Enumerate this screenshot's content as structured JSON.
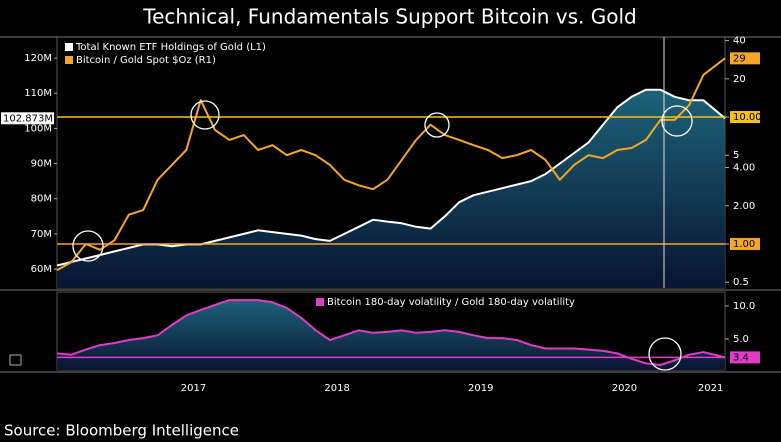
{
  "title": "Technical, Fundamentals Support Bitcoin vs. Gold",
  "source": "Source: Bloomberg Intelligence",
  "chart_data": [
    {
      "type": "line",
      "legend": "upper left",
      "x": [
        2016.55,
        2016.65,
        2016.75,
        2016.85,
        2016.95,
        2017.05,
        2017.15,
        2017.25,
        2017.35,
        2017.45,
        2017.55,
        2017.65,
        2017.75,
        2017.85,
        2017.95,
        2018.05,
        2018.15,
        2018.25,
        2018.35,
        2018.45,
        2018.55,
        2018.65,
        2018.75,
        2018.85,
        2018.95,
        2019.05,
        2019.15,
        2019.25,
        2019.35,
        2019.45,
        2019.55,
        2019.65,
        2019.75,
        2019.85,
        2019.95,
        2020.05,
        2020.15,
        2020.25,
        2020.35,
        2020.45,
        2020.55,
        2020.65,
        2020.75,
        2020.85,
        2020.95,
        2021.05,
        2021.2
      ],
      "xlim": [
        2016.55,
        2021.2
      ],
      "ylim": [
        54600000,
        126000000
      ],
      "yticks": [
        {
          "value": 60000000,
          "label": "60M"
        },
        {
          "value": 70000000,
          "label": "70M"
        },
        {
          "value": 80000000,
          "label": "80M"
        },
        {
          "value": 90000000,
          "label": "90M"
        },
        {
          "value": 100000000,
          "label": "100M"
        },
        {
          "value": 110000000,
          "label": "110M"
        },
        {
          "value": 120000000,
          "label": "120M"
        }
      ],
      "y2lim": [
        0.45,
        42.7
      ],
      "y2scale": "log",
      "y2ticks": [
        40,
        20,
        {
          "value": 10,
          "label": "10.00"
        },
        5,
        {
          "value": 4,
          "label": "4.00"
        },
        {
          "value": 2,
          "label": "2.00"
        },
        {
          "value": 1,
          "label": "1.00"
        },
        0.5
      ],
      "reference_lines": [
        {
          "value": 10,
          "axis": "y2",
          "color": "#f2c21b"
        },
        {
          "value": 1,
          "axis": "y2",
          "color": "#f5a623"
        }
      ],
      "series": [
        {
          "name": "Total Known ETF Holdings of Gold  (L1)",
          "color": "#ffffff",
          "area": true,
          "axis": "y",
          "values": [
            61000000,
            62000000,
            63000000,
            64000000,
            65000000,
            66000000,
            67000000,
            67000000,
            66500000,
            67000000,
            67000000,
            68000000,
            69000000,
            70000000,
            71000000,
            70500000,
            70000000,
            69500000,
            68500000,
            68000000,
            70000000,
            72000000,
            74000000,
            73500000,
            73000000,
            72000000,
            71500000,
            75000000,
            79000000,
            81000000,
            82000000,
            83000000,
            84000000,
            85000000,
            87000000,
            90000000,
            93000000,
            96000000,
            101000000,
            106000000,
            109000000,
            111000000,
            111000000,
            109000000,
            108000000,
            108000000,
            102873000
          ],
          "value_labels": [
            null,
            null,
            null,
            null,
            null,
            null,
            null,
            null,
            null,
            null,
            null,
            null,
            null,
            null,
            null,
            null,
            null,
            null,
            null,
            null,
            null,
            null,
            null,
            null,
            null,
            null,
            null,
            null,
            null,
            null,
            null,
            null,
            null,
            null,
            null,
            null,
            null,
            null,
            null,
            null,
            null,
            null,
            null,
            null,
            null,
            null,
            "102.873M"
          ]
        },
        {
          "name": "Bitcoin / Gold Spot $Oz (R1)",
          "color": "#f5a623",
          "axis": "y2",
          "values": [
            0.62,
            0.72,
            1.0,
            0.9,
            1.07,
            1.7,
            1.85,
            3.2,
            4.2,
            5.5,
            13.6,
            7.9,
            6.6,
            7.2,
            5.5,
            6.0,
            5.0,
            5.5,
            5.0,
            4.2,
            3.2,
            2.9,
            2.7,
            3.2,
            4.6,
            6.6,
            8.7,
            7.2,
            6.6,
            6.0,
            5.5,
            4.75,
            5.0,
            5.5,
            4.6,
            3.2,
            4.2,
            5.0,
            4.75,
            5.5,
            5.7,
            6.6,
            9.5,
            9.5,
            12.4,
            21.5,
            29
          ]
        }
      ]
    },
    {
      "type": "line",
      "legend": "upper center",
      "x": [
        2016.55,
        2016.65,
        2016.75,
        2016.85,
        2016.95,
        2017.05,
        2017.15,
        2017.25,
        2017.35,
        2017.45,
        2017.55,
        2017.65,
        2017.75,
        2017.85,
        2017.95,
        2018.05,
        2018.15,
        2018.25,
        2018.35,
        2018.45,
        2018.55,
        2018.65,
        2018.75,
        2018.85,
        2018.95,
        2019.05,
        2019.15,
        2019.25,
        2019.35,
        2019.45,
        2019.55,
        2019.65,
        2019.75,
        2019.85,
        2019.95,
        2020.05,
        2020.15,
        2020.25,
        2020.35,
        2020.45,
        2020.55,
        2020.65,
        2020.75,
        2020.85,
        2020.95,
        2021.05,
        2021.2
      ],
      "xlim": [
        2016.55,
        2021.2
      ],
      "xticks": [
        {
          "value": 2017.5,
          "label": "2017"
        },
        {
          "value": 2018.5,
          "label": "2018"
        },
        {
          "value": 2019.5,
          "label": "2019"
        },
        {
          "value": 2020.5,
          "label": "2020"
        },
        {
          "value": 2021.1,
          "label": "2021"
        }
      ],
      "y2lim": [
        2.61,
        13.4
      ],
      "y2scale": "log",
      "y2ticks": [
        {
          "value": 10,
          "label": "10.0"
        },
        {
          "value": 5,
          "label": "5.0"
        }
      ],
      "reference_lines": [
        {
          "value": 3.4,
          "axis": "y2",
          "color": "#e03cc8"
        }
      ],
      "series": [
        {
          "name": "Bitcoin 180-day volatility / Gold 180-day volatility",
          "color": "#e03cc8",
          "area": true,
          "axis": "y2",
          "values": [
            3.7,
            3.6,
            4.0,
            4.4,
            4.6,
            4.9,
            5.1,
            5.4,
            6.7,
            8.2,
            9.2,
            10.2,
            11.3,
            11.3,
            11.3,
            10.8,
            9.6,
            7.8,
            6.0,
            4.9,
            5.4,
            6.0,
            5.7,
            5.8,
            6.0,
            5.7,
            5.8,
            6.0,
            5.8,
            5.4,
            5.1,
            5.1,
            4.9,
            4.4,
            4.1,
            4.1,
            4.1,
            4.0,
            3.9,
            3.7,
            3.3,
            3.0,
            2.9,
            3.2,
            3.6,
            3.8,
            3.4
          ]
        }
      ]
    }
  ]
}
